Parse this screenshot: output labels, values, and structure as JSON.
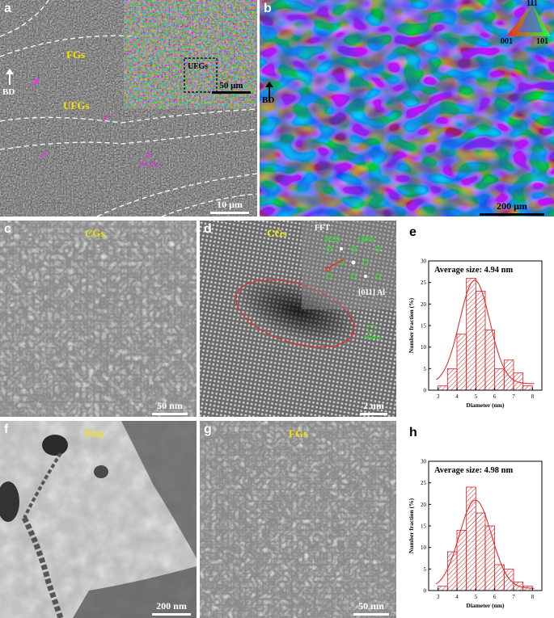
{
  "panels": {
    "a": {
      "label": "a",
      "fgs": "FGs",
      "ufgs": "UFGs",
      "bd": "BD",
      "sc": "Sc,Zr",
      "inset_label": "UFGs",
      "inset_scale": "50 μm",
      "scale": "10 μm"
    },
    "b": {
      "label": "b",
      "bd": "BD",
      "scale": "200 μm",
      "ipf_top": "111",
      "ipf_left": "001",
      "ipf_right": "101"
    },
    "c": {
      "label": "c",
      "region": "CGs",
      "scale": "50 nm"
    },
    "d": {
      "label": "d",
      "region": "CGs",
      "fft": "FFT",
      "spot_a": "(022)",
      "spot_b": "(200)",
      "zone": "[011] Al",
      "matrix_label": "Matrix",
      "scale": "2 nm"
    },
    "f": {
      "label": "f",
      "region": "FGs",
      "scale": "200 nm"
    },
    "g": {
      "label": "g",
      "region": "FGs",
      "scale": "50 nm"
    }
  },
  "chart_data": [
    {
      "type": "bar",
      "panel": "e",
      "label": "e",
      "title": "Average size: 4.94 nm",
      "xlabel": "Diameter (nm)",
      "ylabel": "Number fraction (%)",
      "xlim": [
        2.5,
        8.5
      ],
      "ylim": [
        0,
        30
      ],
      "xticks": [
        3,
        4,
        5,
        6,
        7,
        8
      ],
      "yticks": [
        0,
        5,
        10,
        15,
        20,
        25,
        30
      ],
      "bins": [
        3.25,
        3.75,
        4.25,
        4.75,
        5.25,
        5.75,
        6.25,
        6.75,
        7.25,
        7.75
      ],
      "values": [
        1,
        5,
        13,
        26,
        23,
        14,
        5,
        7,
        4,
        1
      ],
      "fit": {
        "mean": 4.94,
        "sigma": 0.8,
        "peak": 25.5,
        "baseline": 1.5
      }
    },
    {
      "type": "bar",
      "panel": "h",
      "label": "h",
      "title": "Average size: 4.98 nm",
      "xlabel": "Diameter (nm)",
      "ylabel": "Number fraction (%)",
      "xlim": [
        2.5,
        8.5
      ],
      "ylim": [
        0,
        30
      ],
      "xticks": [
        3,
        4,
        5,
        6,
        7,
        8
      ],
      "yticks": [
        0,
        5,
        10,
        15,
        20,
        25,
        30
      ],
      "bins": [
        3.25,
        3.75,
        4.25,
        4.75,
        5.25,
        5.75,
        6.25,
        6.75,
        7.25,
        7.75
      ],
      "values": [
        1,
        9,
        14,
        24,
        18,
        15,
        6,
        5,
        2,
        1
      ],
      "fit": {
        "mean": 4.98,
        "sigma": 0.85,
        "peak": 21,
        "baseline": 0.5
      }
    }
  ]
}
